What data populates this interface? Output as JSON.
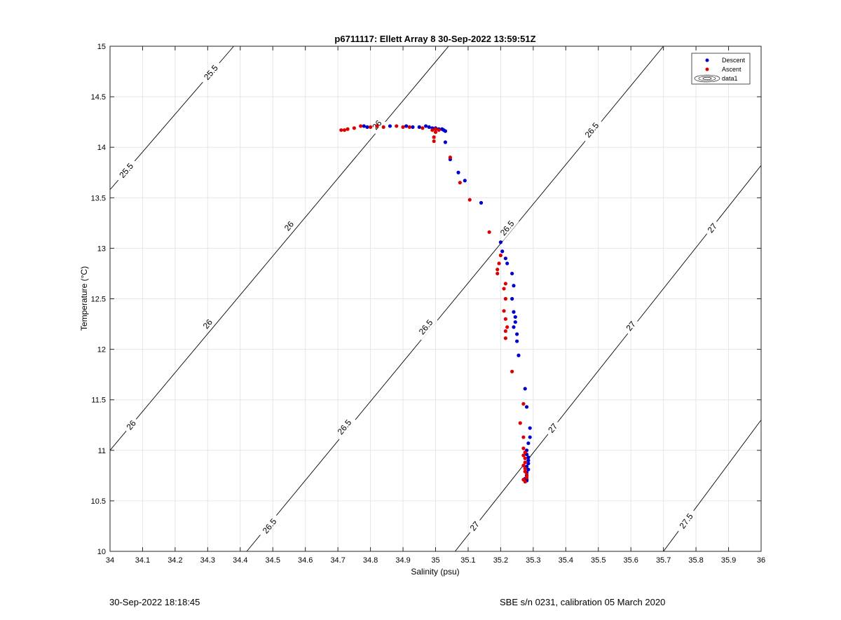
{
  "chart_data": {
    "type": "scatter",
    "title": "p6711117: Ellett Array 8 30-Sep-2022 13:59:51Z",
    "xlabel": "Salinity (psu)",
    "ylabel": "Temperature (°C)",
    "xlim": [
      34,
      36
    ],
    "ylim": [
      10,
      15
    ],
    "xticks": [
      "34",
      "34.1",
      "34.2",
      "34.3",
      "34.4",
      "34.5",
      "34.6",
      "34.7",
      "34.8",
      "34.9",
      "35",
      "35.1",
      "35.2",
      "35.3",
      "35.4",
      "35.5",
      "35.6",
      "35.7",
      "35.8",
      "35.9",
      "36"
    ],
    "yticks": [
      "10",
      "10.5",
      "11",
      "11.5",
      "12",
      "12.5",
      "13",
      "13.5",
      "14",
      "14.5",
      "15"
    ],
    "grid": true,
    "legend_position": "top-right",
    "legend": [
      "Descent",
      "Ascent",
      "data1"
    ],
    "colors": {
      "descent": "#0000cc",
      "ascent": "#dd0000",
      "contour": "#000000",
      "grid": "#e6e6e6"
    },
    "contours": [
      {
        "level": "25.5",
        "x1": 34.0,
        "y1": 13.58,
        "x2": 34.38,
        "y2": 15.0,
        "labels": [
          {
            "text": "25.5",
            "x": 34.05,
            "y": 13.77
          },
          {
            "text": "25.5",
            "x": 34.31,
            "y": 14.74
          }
        ]
      },
      {
        "level": "26",
        "x1": 34.0,
        "y1": 11.0,
        "x2": 35.04,
        "y2": 15.0,
        "labels": [
          {
            "text": "26",
            "x": 34.065,
            "y": 11.25
          },
          {
            "text": "26",
            "x": 34.3,
            "y": 12.25
          },
          {
            "text": "26",
            "x": 34.55,
            "y": 13.22
          },
          {
            "text": "26",
            "x": 34.82,
            "y": 14.22
          }
        ]
      },
      {
        "level": "26.5",
        "x1": 34.42,
        "y1": 10.0,
        "x2": 35.7,
        "y2": 15.0,
        "labels": [
          {
            "text": "26.5",
            "x": 34.49,
            "y": 10.25
          },
          {
            "text": "26.5",
            "x": 34.72,
            "y": 11.23
          },
          {
            "text": "26.5",
            "x": 34.97,
            "y": 12.22
          },
          {
            "text": "26.5",
            "x": 35.22,
            "y": 13.2
          },
          {
            "text": "26.5",
            "x": 35.48,
            "y": 14.17
          }
        ]
      },
      {
        "level": "27",
        "x1": 35.06,
        "y1": 10.0,
        "x2": 36.0,
        "y2": 13.82,
        "labels": [
          {
            "text": "27",
            "x": 35.12,
            "y": 10.25
          },
          {
            "text": "27",
            "x": 35.36,
            "y": 11.22
          },
          {
            "text": "27",
            "x": 35.6,
            "y": 12.23
          },
          {
            "text": "27",
            "x": 35.85,
            "y": 13.2
          }
        ]
      },
      {
        "level": "27.5",
        "x1": 35.7,
        "y1": 10.0,
        "x2": 36.0,
        "y2": 11.3,
        "labels": [
          {
            "text": "27.5",
            "x": 35.77,
            "y": 10.3
          }
        ]
      }
    ],
    "series": [
      {
        "name": "Descent",
        "points": [
          [
            34.78,
            14.21
          ],
          [
            34.79,
            14.2
          ],
          [
            34.86,
            14.21
          ],
          [
            34.91,
            14.21
          ],
          [
            34.93,
            14.2
          ],
          [
            34.95,
            14.2
          ],
          [
            34.97,
            14.21
          ],
          [
            34.98,
            14.2
          ],
          [
            34.99,
            14.19
          ],
          [
            35.0,
            14.19
          ],
          [
            35.01,
            14.18
          ],
          [
            35.02,
            14.18
          ],
          [
            35.025,
            14.17
          ],
          [
            35.03,
            14.16
          ],
          [
            35.03,
            14.05
          ],
          [
            35.045,
            13.88
          ],
          [
            35.07,
            13.75
          ],
          [
            35.09,
            13.67
          ],
          [
            35.14,
            13.45
          ],
          [
            35.2,
            13.06
          ],
          [
            35.205,
            12.97
          ],
          [
            35.215,
            12.9
          ],
          [
            35.22,
            12.85
          ],
          [
            35.235,
            12.75
          ],
          [
            35.24,
            12.63
          ],
          [
            35.235,
            12.5
          ],
          [
            35.24,
            12.37
          ],
          [
            35.245,
            12.32
          ],
          [
            35.245,
            12.27
          ],
          [
            35.24,
            12.22
          ],
          [
            35.25,
            12.15
          ],
          [
            35.25,
            12.08
          ],
          [
            35.255,
            11.94
          ],
          [
            35.275,
            11.61
          ],
          [
            35.28,
            11.43
          ],
          [
            35.29,
            11.22
          ],
          [
            35.29,
            11.13
          ],
          [
            35.285,
            11.07
          ],
          [
            35.28,
            11.0
          ],
          [
            35.28,
            10.96
          ],
          [
            35.285,
            10.93
          ],
          [
            35.285,
            10.9
          ],
          [
            35.285,
            10.87
          ],
          [
            35.28,
            10.84
          ],
          [
            35.285,
            10.81
          ],
          [
            35.28,
            10.78
          ],
          [
            35.28,
            10.75
          ],
          [
            35.275,
            10.72
          ],
          [
            35.28,
            10.71
          ],
          [
            35.28,
            10.7
          ]
        ]
      },
      {
        "name": "Ascent",
        "points": [
          [
            34.71,
            14.17
          ],
          [
            34.72,
            14.17
          ],
          [
            34.73,
            14.18
          ],
          [
            34.75,
            14.19
          ],
          [
            34.77,
            14.21
          ],
          [
            34.8,
            14.2
          ],
          [
            34.82,
            14.21
          ],
          [
            34.84,
            14.2
          ],
          [
            34.88,
            14.21
          ],
          [
            34.9,
            14.2
          ],
          [
            34.92,
            14.2
          ],
          [
            34.96,
            14.19
          ],
          [
            34.99,
            14.17
          ],
          [
            35.0,
            14.15
          ],
          [
            34.995,
            14.1
          ],
          [
            35.0,
            14.18
          ],
          [
            35.01,
            14.17
          ],
          [
            34.995,
            14.06
          ],
          [
            35.045,
            13.9
          ],
          [
            35.075,
            13.65
          ],
          [
            35.105,
            13.48
          ],
          [
            35.165,
            13.16
          ],
          [
            35.2,
            12.93
          ],
          [
            35.195,
            12.85
          ],
          [
            35.19,
            12.79
          ],
          [
            35.19,
            12.75
          ],
          [
            35.215,
            12.65
          ],
          [
            35.21,
            12.6
          ],
          [
            35.215,
            12.5
          ],
          [
            35.21,
            12.38
          ],
          [
            35.215,
            12.3
          ],
          [
            35.22,
            12.22
          ],
          [
            35.215,
            12.18
          ],
          [
            35.215,
            12.11
          ],
          [
            35.235,
            11.78
          ],
          [
            35.26,
            11.27
          ],
          [
            35.27,
            11.46
          ],
          [
            35.27,
            11.13
          ],
          [
            35.27,
            11.02
          ],
          [
            35.275,
            10.98
          ],
          [
            35.27,
            10.95
          ],
          [
            35.275,
            10.92
          ],
          [
            35.275,
            10.88
          ],
          [
            35.27,
            10.85
          ],
          [
            35.275,
            10.82
          ],
          [
            35.275,
            10.79
          ],
          [
            35.28,
            10.76
          ],
          [
            35.28,
            10.73
          ],
          [
            35.27,
            10.71
          ],
          [
            35.275,
            10.69
          ]
        ]
      }
    ]
  },
  "footer": {
    "left": "30-Sep-2022 18:18:45",
    "right": "SBE s/n 0231, calibration 05 March 2020"
  }
}
